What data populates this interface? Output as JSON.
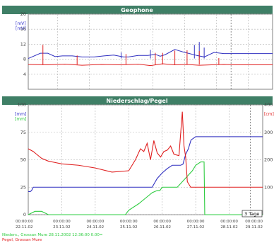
{
  "app": {
    "footer_lines": [
      "Nieders., Grossan Mure 28.11.2002 12:36:00 0.00=",
      "Pegel, Grossan Mure"
    ],
    "footer_colors": [
      "#2ecc40",
      "#e02020"
    ]
  },
  "chart_data": [
    {
      "type": "line",
      "title": "Geophone",
      "title_bar_color": "#3f7f66",
      "y_axis": {
        "label_lines": [
          "[mV]",
          "[mV]"
        ],
        "label_colors": [
          "#3333cc",
          "#3333cc"
        ],
        "range": [
          0,
          20
        ],
        "ticks": [
          "20",
          "16",
          "12",
          "8",
          "4"
        ],
        "tick_values": [
          20,
          16,
          12,
          8,
          4
        ]
      },
      "grid": true,
      "series": [
        {
          "color": "#3030c0",
          "description": "step line with vertical spikes",
          "x": [
            0.0,
            0.05,
            0.08,
            0.11,
            0.14,
            0.18,
            0.22,
            0.27,
            0.31,
            0.35,
            0.39,
            0.41,
            0.45,
            0.49,
            0.52,
            0.54,
            0.56,
            0.6,
            0.63,
            0.66,
            0.69,
            0.72,
            0.76,
            0.8,
            0.85,
            0.9,
            0.94,
            1.0
          ],
          "y": [
            8.2,
            9.6,
            9.6,
            8.7,
            8.9,
            8.9,
            8.6,
            8.6,
            8.9,
            9.1,
            8.6,
            8.6,
            9.0,
            9.0,
            9.3,
            8.8,
            9.2,
            10.6,
            10.0,
            9.5,
            9.0,
            8.6,
            9.8,
            9.5,
            9.5,
            9.5,
            9.5,
            9.5
          ],
          "spikes": [
            [
              0.38,
              9.8
            ],
            [
              0.5,
              10.5
            ],
            [
              0.68,
              11.8
            ],
            [
              0.7,
              12.6
            ],
            [
              0.72,
              11.1
            ]
          ]
        },
        {
          "color": "#e02020",
          "description": "noisy spikes around 6.5",
          "x": [
            0.0,
            0.08,
            0.15,
            0.22,
            0.3,
            0.38,
            0.45,
            0.5,
            0.55,
            0.6,
            0.65,
            0.7,
            0.75,
            0.8,
            0.85,
            0.9,
            0.95,
            1.0
          ],
          "y": [
            6.6,
            6.5,
            6.7,
            6.4,
            6.6,
            6.5,
            6.7,
            6.3,
            6.8,
            6.5,
            6.6,
            6.4,
            6.5,
            6.6,
            6.5,
            6.5,
            6.5,
            6.5
          ],
          "spikes": [
            [
              0.06,
              11.8
            ],
            [
              0.2,
              9.0
            ],
            [
              0.4,
              9.4
            ],
            [
              0.52,
              9.7
            ],
            [
              0.55,
              9.7
            ],
            [
              0.6,
              10.3
            ],
            [
              0.65,
              10.4
            ],
            [
              0.7,
              10.2
            ],
            [
              0.78,
              8.3
            ]
          ]
        }
      ]
    },
    {
      "type": "line",
      "title": "Niederschlag/Pegel",
      "title_bar_color": "#3f7f66",
      "y_axis_left": {
        "label_lines": [
          "[mm]",
          "[mm]"
        ],
        "label_colors": [
          "#3333cc",
          "#2ecc40"
        ],
        "range": [
          0,
          100
        ],
        "ticks": [
          "100",
          "75",
          "50",
          "25",
          "0"
        ],
        "tick_values": [
          100,
          75,
          50,
          25,
          0
        ]
      },
      "y_axis_right": {
        "label_lines": [
          "[cm]"
        ],
        "label_colors": [
          "#e02020"
        ],
        "range": [
          0,
          400
        ],
        "ticks": [
          "400",
          "300",
          "200",
          "100"
        ],
        "tick_values": [
          400,
          300,
          200,
          100
        ]
      },
      "x_axis": {
        "date_ticks": [
          "22.11.02",
          "23.11.02",
          "24.11.02",
          "25.11.02",
          "26.11.02",
          "27.11.02",
          "28.11.02",
          "29.11.02"
        ],
        "time_ticks": [
          "00:00:00",
          "00:00:00",
          "00:00:00",
          "00:00:00",
          "00:00:00",
          "00:00:00",
          "00:00:00",
          "00:00:00"
        ]
      },
      "grid": true,
      "legend_box": "3 Tage",
      "series": [
        {
          "color": "#3030c0",
          "description": "cumulative precipitation (blue)",
          "x_days": [
            0.0,
            0.06,
            0.1,
            0.15,
            0.2,
            0.3,
            0.6,
            1.0,
            1.5,
            2.0,
            2.5,
            3.0,
            3.2,
            3.35,
            3.5,
            3.7,
            3.85,
            4.0,
            4.15,
            4.3,
            4.45,
            4.55,
            4.62,
            4.7,
            4.78,
            4.86,
            5.0,
            6.0,
            6.4,
            6.6,
            6.8,
            7.0
          ],
          "y": [
            21,
            21,
            22,
            25,
            25,
            25,
            25,
            25,
            25,
            25,
            25,
            25,
            25,
            25,
            25,
            25,
            33,
            38,
            42,
            45,
            45,
            45,
            46,
            55,
            60,
            68,
            71,
            71,
            71,
            71,
            71,
            71
          ]
        },
        {
          "color": "#2ecc40",
          "description": "precipitation (green)",
          "x_days": [
            0.0,
            0.2,
            0.4,
            0.6,
            1.0,
            1.4,
            2.0,
            2.6,
            2.9,
            3.0,
            3.3,
            3.5,
            3.7,
            3.85,
            3.93,
            4.0,
            4.15,
            4.3,
            4.45,
            4.6,
            4.75,
            4.9,
            5.0,
            5.15,
            5.25,
            5.27,
            6.0,
            6.5,
            7.0
          ],
          "y": [
            0,
            3,
            3,
            0,
            0,
            0,
            0,
            0,
            0,
            4,
            10,
            15,
            20,
            22,
            22,
            25,
            25,
            25,
            25,
            30,
            35,
            40,
            45,
            48,
            48,
            0,
            0,
            0,
            0
          ]
        },
        {
          "color": "#e02020",
          "description": "water level (red, right axis)",
          "axis": "right",
          "x_days": [
            0.0,
            0.15,
            0.25,
            0.4,
            0.6,
            0.8,
            1.0,
            1.5,
            2.0,
            2.5,
            3.0,
            3.2,
            3.35,
            3.45,
            3.55,
            3.65,
            3.75,
            3.85,
            3.95,
            4.05,
            4.15,
            4.25,
            4.35,
            4.5,
            4.6,
            4.65,
            4.7,
            4.75,
            4.8,
            4.85,
            4.95,
            5.05,
            5.2,
            5.5,
            6.0,
            6.5,
            7.0
          ],
          "y": [
            240,
            230,
            220,
            205,
            195,
            190,
            185,
            180,
            170,
            155,
            160,
            200,
            240,
            230,
            260,
            200,
            270,
            225,
            210,
            230,
            235,
            250,
            220,
            215,
            375,
            250,
            210,
            120,
            110,
            100,
            100,
            100,
            100,
            100,
            100,
            100,
            100
          ]
        }
      ]
    }
  ]
}
